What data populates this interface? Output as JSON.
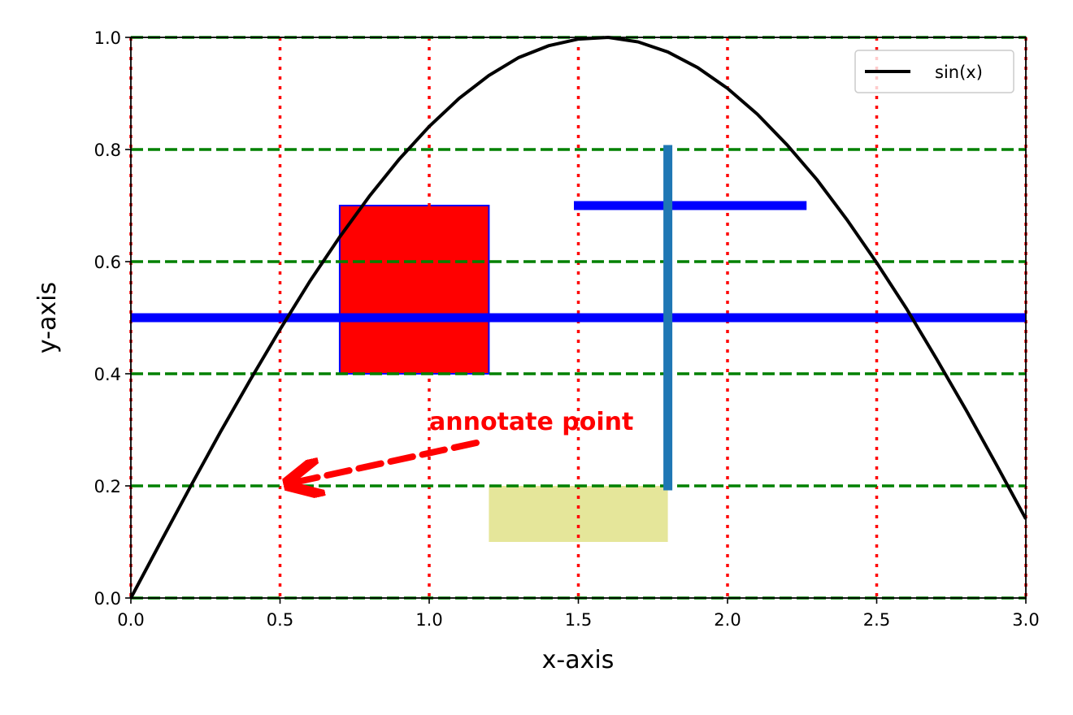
{
  "chart_data": {
    "type": "line",
    "xlabel": "x-axis",
    "ylabel": "y-axis",
    "xlim": [
      0,
      3
    ],
    "ylim": [
      0,
      1
    ],
    "xticks": [
      {
        "value": 0,
        "label": "0.0"
      },
      0.5,
      {
        "value": 1,
        "label": "1.0"
      },
      1.5,
      {
        "value": 2,
        "label": "2.0"
      },
      2.5,
      {
        "value": 3,
        "label": "3.0"
      }
    ],
    "yticks": [
      {
        "value": 0,
        "label": "0.0"
      },
      0.2,
      0.4,
      0.6,
      0.8,
      {
        "value": 1,
        "label": "1.0"
      }
    ],
    "xgrid": {
      "color": "#ff0000",
      "style": "dotted"
    },
    "ygrid": {
      "color": "#008000",
      "style": "dashed"
    },
    "legend": "upper right",
    "series": [
      {
        "name": "sin(x)",
        "color": "#000000",
        "x": [
          0,
          0.1,
          0.2,
          0.3,
          0.4,
          0.5,
          0.6,
          0.7,
          0.8,
          0.9,
          1.0,
          1.1,
          1.2,
          1.3,
          1.4,
          1.5,
          1.6,
          1.7,
          1.8,
          1.9,
          2.0,
          2.1,
          2.2,
          2.3,
          2.4,
          2.5,
          2.6,
          2.7,
          2.8,
          2.9,
          3.0
        ],
        "values": [
          0,
          0.1,
          0.199,
          0.296,
          0.389,
          0.479,
          0.565,
          0.644,
          0.717,
          0.783,
          0.841,
          0.891,
          0.932,
          0.964,
          0.985,
          0.997,
          1.0,
          0.992,
          0.974,
          0.946,
          0.909,
          0.863,
          0.808,
          0.746,
          0.675,
          0.598,
          0.516,
          0.427,
          0.335,
          0.239,
          0.141
        ]
      }
    ],
    "rects": [
      {
        "x0": 0.7,
        "x1": 1.2,
        "y0": 0.4,
        "y1": 0.7,
        "color": "#ff0000",
        "edgecolor": "#0000ff"
      },
      {
        "x0": 1.2,
        "x1": 1.8,
        "y0": 0.1,
        "y1": 0.2,
        "color": "#e5e69a"
      }
    ],
    "hlines": [
      {
        "y": 0.5,
        "xmin": 0,
        "xmax": 3,
        "color": "#0000ff"
      },
      {
        "y": 0.7,
        "xmin": 1.5,
        "xmax": 2.25,
        "color": "#0000ff"
      }
    ],
    "vlines": [
      {
        "x": 1.8,
        "ymin": 0.2,
        "ymax": 0.8,
        "color": "#1f77b4"
      }
    ],
    "annotations": [
      {
        "text": "annotate point",
        "x": 1.0,
        "y": 0.3,
        "arrow_x": 0.5,
        "arrow_y": 0.2,
        "color": "#ff0000"
      }
    ]
  }
}
